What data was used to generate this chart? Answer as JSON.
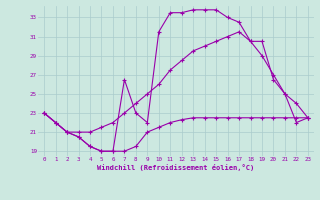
{
  "xlabel": "Windchill (Refroidissement éolien,°C)",
  "bg_color": "#cce8e0",
  "grid_color": "#aacccc",
  "line_color": "#9900aa",
  "xlim": [
    -0.5,
    23.5
  ],
  "ylim": [
    18.5,
    34.2
  ],
  "yticks": [
    19,
    21,
    23,
    25,
    27,
    29,
    31,
    33
  ],
  "xticks": [
    0,
    1,
    2,
    3,
    4,
    5,
    6,
    7,
    8,
    9,
    10,
    11,
    12,
    13,
    14,
    15,
    16,
    17,
    18,
    19,
    20,
    21,
    22,
    23
  ],
  "line1_x": [
    0,
    1,
    2,
    3,
    4,
    5,
    6,
    7,
    8,
    9,
    10,
    11,
    12,
    13,
    14,
    15,
    16,
    17,
    18,
    19,
    20,
    21,
    22,
    23
  ],
  "line1_y": [
    23.0,
    22.0,
    21.0,
    20.5,
    19.5,
    19.0,
    19.0,
    19.0,
    19.5,
    21.0,
    21.5,
    22.0,
    22.3,
    22.5,
    22.5,
    22.5,
    22.5,
    22.5,
    22.5,
    22.5,
    22.5,
    22.5,
    22.5,
    22.5
  ],
  "line2_x": [
    0,
    1,
    2,
    3,
    4,
    5,
    6,
    7,
    8,
    9,
    10,
    11,
    12,
    13,
    14,
    15,
    16,
    17,
    18,
    19,
    20,
    21,
    22,
    23
  ],
  "line2_y": [
    23.0,
    22.0,
    21.0,
    21.0,
    21.0,
    21.5,
    22.0,
    23.0,
    24.0,
    25.0,
    26.0,
    27.5,
    28.5,
    29.5,
    30.0,
    30.5,
    31.0,
    31.5,
    30.5,
    29.0,
    27.0,
    25.0,
    24.0,
    22.5
  ],
  "line3_x": [
    0,
    1,
    2,
    3,
    4,
    5,
    6,
    7,
    8,
    9,
    10,
    11,
    12,
    13,
    14,
    15,
    16,
    17,
    18,
    19,
    20,
    21,
    22,
    23
  ],
  "line3_y": [
    23.0,
    22.0,
    21.0,
    20.5,
    19.5,
    19.0,
    19.0,
    26.5,
    23.0,
    22.0,
    31.5,
    33.5,
    33.5,
    33.8,
    33.8,
    33.8,
    33.0,
    32.5,
    30.5,
    30.5,
    26.5,
    25.0,
    22.0,
    22.5
  ]
}
